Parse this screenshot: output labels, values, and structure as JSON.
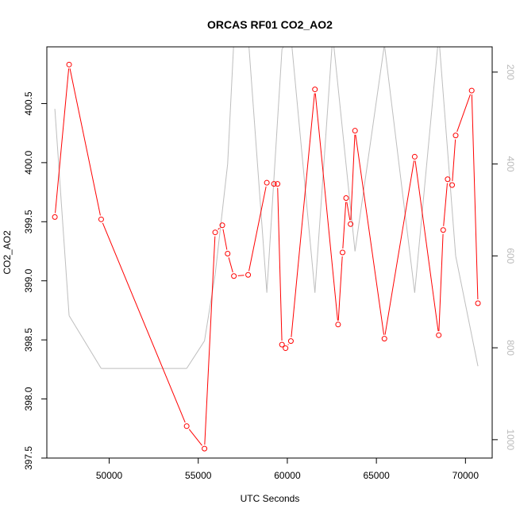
{
  "chart_data": {
    "type": "line",
    "title": "ORCAS RF01 CO2_AO2",
    "xlabel": "UTC Seconds",
    "ylabel": "CO2_AO2",
    "xlim": [
      46500,
      71500
    ],
    "ylim": [
      397.5,
      400.98
    ],
    "x_ticks": [
      50000,
      55000,
      60000,
      65000,
      70000
    ],
    "x_tick_labels": [
      "50000",
      "55000",
      "60000",
      "65000",
      "70000"
    ],
    "y_ticks": [
      397.5,
      398.0,
      398.5,
      399.0,
      399.5,
      400.0,
      400.5
    ],
    "y_tick_labels": [
      "397.5",
      "398.0",
      "398.5",
      "399.0",
      "399.5",
      "400.0",
      "400.5"
    ],
    "y2_reversed": true,
    "y2lim": [
      1040,
      145
    ],
    "y2_ticks": [
      200,
      400,
      600,
      800,
      1000
    ],
    "y2_tick_labels": [
      "200",
      "400",
      "600",
      "800",
      "1000"
    ],
    "grid": false,
    "series": [
      {
        "color": "#ff0000",
        "axis": "left",
        "markers": "open-circle",
        "x": [
          46950,
          47750,
          49550,
          54350,
          55350,
          55950,
          56350,
          56650,
          57000,
          57800,
          58850,
          59250,
          59450,
          59700,
          59900,
          60200,
          61550,
          62850,
          63100,
          63300,
          63550,
          63800,
          65450,
          67150,
          68500,
          68750,
          69000,
          69250,
          69450,
          70350,
          70700
        ],
        "y": [
          399.54,
          400.83,
          399.52,
          397.77,
          397.58,
          399.41,
          399.47,
          399.23,
          399.04,
          399.05,
          399.83,
          399.82,
          399.82,
          398.46,
          398.43,
          398.49,
          400.62,
          398.63,
          399.24,
          399.7,
          399.48,
          400.27,
          398.51,
          400.05,
          398.54,
          399.43,
          399.86,
          399.81,
          400.23,
          400.61,
          398.81
        ]
      },
      {
        "color": "#bebebe",
        "axis": "right",
        "markers": "none",
        "x": [
          46950,
          47750,
          49550,
          54350,
          55350,
          55950,
          56650,
          57000,
          57800,
          58850,
          59700,
          60200,
          61550,
          62550,
          63800,
          65450,
          67150,
          68500,
          69450,
          70700
        ],
        "y": [
          280,
          730,
          845,
          845,
          785,
          640,
          400,
          130,
          120,
          680,
          150,
          120,
          680,
          120,
          590,
          140,
          680,
          120,
          600,
          840
        ]
      }
    ]
  }
}
